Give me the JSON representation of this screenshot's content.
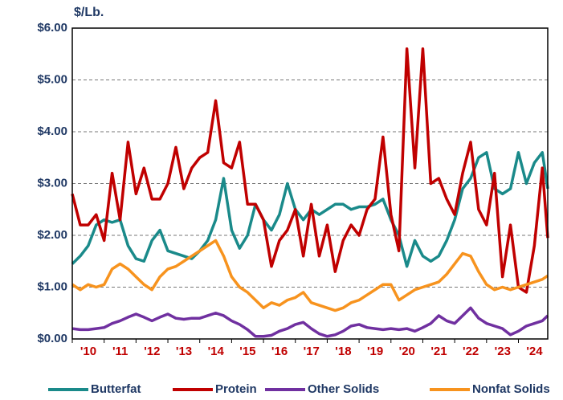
{
  "chart_data": {
    "type": "line",
    "y_label": "$/Lb.",
    "x": [
      2010,
      2010.25,
      2010.5,
      2010.75,
      2011,
      2011.25,
      2011.5,
      2011.75,
      2012,
      2012.25,
      2012.5,
      2012.75,
      2013,
      2013.25,
      2013.5,
      2013.75,
      2014,
      2014.25,
      2014.5,
      2014.75,
      2015,
      2015.25,
      2015.5,
      2015.75,
      2016,
      2016.25,
      2016.5,
      2016.75,
      2017,
      2017.25,
      2017.5,
      2017.75,
      2018,
      2018.25,
      2018.5,
      2018.75,
      2019,
      2019.25,
      2019.5,
      2019.75,
      2020,
      2020.25,
      2020.5,
      2020.75,
      2021,
      2021.25,
      2021.5,
      2021.75,
      2022,
      2022.25,
      2022.5,
      2022.75,
      2023,
      2023.25,
      2023.5,
      2023.75,
      2024,
      2024.25,
      2024.5,
      2024.75,
      2024.92
    ],
    "series": [
      {
        "name": "Butterfat",
        "color": "#1a8a8a",
        "values": [
          1.45,
          1.6,
          1.8,
          2.2,
          2.3,
          2.25,
          2.3,
          1.8,
          1.55,
          1.5,
          1.9,
          2.1,
          1.7,
          1.65,
          1.6,
          1.55,
          1.7,
          1.9,
          2.3,
          3.1,
          2.1,
          1.75,
          2.0,
          2.6,
          2.3,
          2.1,
          2.4,
          3.0,
          2.5,
          2.3,
          2.5,
          2.4,
          2.5,
          2.6,
          2.6,
          2.5,
          2.55,
          2.55,
          2.6,
          2.7,
          2.3,
          2.0,
          1.4,
          1.9,
          1.6,
          1.5,
          1.6,
          1.9,
          2.3,
          2.9,
          3.1,
          3.5,
          3.6,
          2.9,
          2.8,
          2.9,
          3.6,
          3.0,
          3.4,
          3.6,
          2.9
        ]
      },
      {
        "name": "Protein",
        "color": "#c00000",
        "values": [
          2.8,
          2.2,
          2.2,
          2.4,
          1.9,
          3.2,
          2.3,
          3.8,
          2.8,
          3.3,
          2.7,
          2.7,
          3.0,
          3.7,
          2.9,
          3.3,
          3.5,
          3.6,
          4.6,
          3.4,
          3.3,
          3.8,
          2.6,
          2.6,
          2.3,
          1.4,
          1.9,
          2.1,
          2.5,
          1.6,
          2.6,
          1.6,
          2.2,
          1.3,
          1.9,
          2.2,
          2.0,
          2.5,
          2.7,
          3.9,
          2.4,
          1.7,
          5.6,
          3.3,
          5.6,
          3.0,
          3.1,
          2.7,
          2.4,
          3.2,
          3.8,
          2.5,
          2.2,
          3.2,
          1.2,
          2.2,
          1.0,
          0.9,
          1.8,
          3.3,
          1.95
        ]
      },
      {
        "name": "Other Solids",
        "color": "#7030a0",
        "values": [
          0.2,
          0.18,
          0.18,
          0.2,
          0.22,
          0.3,
          0.35,
          0.42,
          0.48,
          0.42,
          0.35,
          0.42,
          0.48,
          0.4,
          0.38,
          0.4,
          0.4,
          0.45,
          0.5,
          0.45,
          0.35,
          0.28,
          0.18,
          0.05,
          0.05,
          0.07,
          0.15,
          0.2,
          0.28,
          0.32,
          0.2,
          0.1,
          0.05,
          0.08,
          0.15,
          0.25,
          0.28,
          0.22,
          0.2,
          0.18,
          0.2,
          0.18,
          0.2,
          0.15,
          0.22,
          0.3,
          0.45,
          0.35,
          0.3,
          0.45,
          0.6,
          0.4,
          0.3,
          0.25,
          0.2,
          0.08,
          0.15,
          0.25,
          0.3,
          0.35,
          0.45
        ]
      },
      {
        "name": "Nonfat Solids",
        "color": "#f7931e",
        "values": [
          1.05,
          0.95,
          1.05,
          1.0,
          1.05,
          1.35,
          1.45,
          1.35,
          1.2,
          1.05,
          0.95,
          1.2,
          1.35,
          1.4,
          1.5,
          1.6,
          1.7,
          1.8,
          1.9,
          1.6,
          1.2,
          1.0,
          0.9,
          0.75,
          0.6,
          0.7,
          0.65,
          0.75,
          0.8,
          0.9,
          0.7,
          0.65,
          0.6,
          0.55,
          0.6,
          0.7,
          0.75,
          0.85,
          0.95,
          1.05,
          1.05,
          0.75,
          0.85,
          0.95,
          1.0,
          1.05,
          1.1,
          1.25,
          1.45,
          1.65,
          1.6,
          1.3,
          1.05,
          0.95,
          1.0,
          0.95,
          1.0,
          1.05,
          1.1,
          1.15,
          1.22
        ]
      }
    ],
    "xlim": [
      2010,
      2024.92
    ],
    "xticks": [
      {
        "value": 2010,
        "label": "'10"
      },
      {
        "value": 2011,
        "label": "'11"
      },
      {
        "value": 2012,
        "label": "'12"
      },
      {
        "value": 2013,
        "label": "'13"
      },
      {
        "value": 2014,
        "label": "'14"
      },
      {
        "value": 2015,
        "label": "'15"
      },
      {
        "value": 2016,
        "label": "'16"
      },
      {
        "value": 2017,
        "label": "'17"
      },
      {
        "value": 2018,
        "label": "'18"
      },
      {
        "value": 2019,
        "label": "'19"
      },
      {
        "value": 2020,
        "label": "'20"
      },
      {
        "value": 2021,
        "label": "'21"
      },
      {
        "value": 2022,
        "label": "'22"
      },
      {
        "value": 2023,
        "label": "'23"
      },
      {
        "value": 2024,
        "label": "'24"
      }
    ],
    "ylim": [
      0,
      6
    ],
    "yticks": [
      {
        "value": 0,
        "label": "$0.00"
      },
      {
        "value": 1,
        "label": "$1.00"
      },
      {
        "value": 2,
        "label": "$2.00"
      },
      {
        "value": 3,
        "label": "$3.00"
      },
      {
        "value": 4,
        "label": "$4.00"
      },
      {
        "value": 5,
        "label": "$5.00"
      },
      {
        "value": 6,
        "label": "$6.00"
      }
    ],
    "grid": true,
    "legend": "bottom",
    "x_tick_color": "#c00000"
  }
}
